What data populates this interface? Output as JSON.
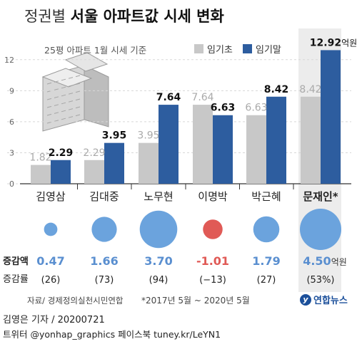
{
  "title": {
    "prefix": "정권별",
    "main": "서울 아파트값 시세 변화"
  },
  "subtitle": "25평 아파트 1월 시세 기준",
  "legend": {
    "start": "임기초",
    "end": "임기말"
  },
  "colors": {
    "start": "#c8c8c8",
    "end": "#2d5d9f",
    "bubble_positive": "#6ba3dd",
    "bubble_negative": "#e05a56",
    "change_positive": "#5a8fd0",
    "change_negative": "#e05a56"
  },
  "chart_data": {
    "type": "bar",
    "categories": [
      "김영삼",
      "김대중",
      "노무현",
      "이명박",
      "박근혜",
      "문재인*"
    ],
    "series": [
      {
        "name": "임기초",
        "values": [
          1.82,
          2.29,
          3.95,
          7.64,
          6.63,
          8.42
        ]
      },
      {
        "name": "임기말",
        "values": [
          2.29,
          3.95,
          7.64,
          6.63,
          8.42,
          12.92
        ]
      }
    ],
    "value_labels_start": [
      "1.82",
      "2.29",
      "3.95",
      "7.64",
      "6.63",
      "8.42"
    ],
    "value_labels_end": [
      "2.29",
      "3.95",
      "7.64",
      "6.63",
      "8.42",
      "12.92"
    ],
    "last_value_unit": "억원",
    "yticks": [
      "0",
      "3",
      "6",
      "9",
      "12"
    ],
    "ylim": [
      0,
      13.5
    ],
    "change": {
      "label": "증감액",
      "values": [
        0.47,
        1.66,
        3.7,
        -1.01,
        1.79,
        4.5
      ],
      "labels": [
        "0.47",
        "1.66",
        "3.70",
        "-1.01",
        "1.79",
        "4.50"
      ],
      "last_unit": "억원"
    },
    "rate": {
      "label": "증감률",
      "labels": [
        "(26)",
        "(73)",
        "(94)",
        "(−13)",
        "(27)",
        "(53%)"
      ]
    }
  },
  "source": "자료/ 경제정의실천시민연합",
  "note": "*2017년 5월 ~ 2020년 5월",
  "logo_text": "연합뉴스",
  "footer": {
    "byline": "김영은 기자 / 20200721",
    "social": "트위터 @yonhap_graphics  페이스북 tuney.kr/LeYN1"
  }
}
